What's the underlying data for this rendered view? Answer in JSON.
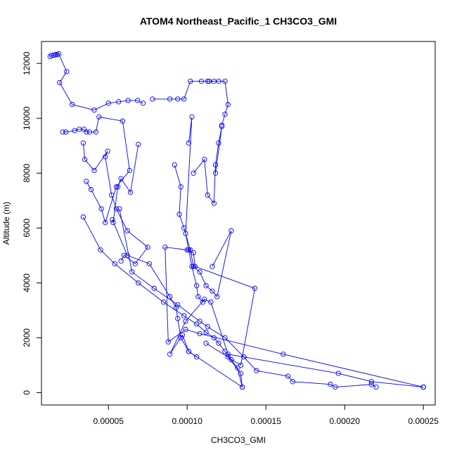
{
  "chart_data": {
    "type": "line",
    "title": "ATOM4 Northeast_Pacific_1 CH3CO3_GMI",
    "xlabel": "CH3CO3_GMI",
    "ylabel": "Altitude (m)",
    "xlim": [
      7.5e-06,
      0.0002575
    ],
    "ylim": [
      -450,
      12800
    ],
    "x_ticks": [
      {
        "value": 5e-05,
        "label": "0.00005"
      },
      {
        "value": 0.0001,
        "label": "0.00010"
      },
      {
        "value": 0.00015,
        "label": "0.00015"
      },
      {
        "value": 0.0002,
        "label": "0.00020"
      },
      {
        "value": 0.00025,
        "label": "0.00025"
      }
    ],
    "y_ticks": [
      {
        "value": 0,
        "label": "0"
      },
      {
        "value": 2000,
        "label": "2000"
      },
      {
        "value": 4000,
        "label": "4000"
      },
      {
        "value": 6000,
        "label": "6000"
      },
      {
        "value": 8000,
        "label": "8000"
      },
      {
        "value": 10000,
        "label": "10000"
      },
      {
        "value": 12000,
        "label": "12000"
      }
    ],
    "grid": false,
    "legend": "none",
    "series_color": "#0000ff",
    "marker": "open-circle",
    "series": [
      {
        "x": [
          1.3e-05,
          1.4e-05,
          1.55e-05,
          1.65e-05,
          1.75e-05,
          1.85e-05,
          2.35e-05,
          1.9e-05,
          2.7e-05,
          4.1e-05,
          5e-05,
          5.65e-05,
          6.25e-05,
          6.85e-05,
          7.2e-05
        ],
        "y": [
          12250,
          12300,
          12300,
          12320,
          12320,
          12350,
          11700,
          11300,
          10500,
          10300,
          10550,
          10600,
          10650,
          10650,
          10550
        ]
      },
      {
        "x": [
          7.8e-05,
          8.9e-05,
          9.4e-05,
          9.8e-05,
          0.000102,
          0.000109,
          0.000113,
          0.000114,
          0.000117,
          0.00012,
          0.000124,
          0.000126,
          0.000124,
          0.000122
        ],
        "y": [
          10700,
          10700,
          10700,
          10700,
          11350,
          11350,
          11350,
          11350,
          11350,
          11350,
          11350,
          10500,
          10150,
          9750
        ]
      },
      {
        "x": [
          2.1e-05,
          2.3e-05,
          2.85e-05,
          3.15e-05,
          3.45e-05,
          3.6e-05,
          3.8e-05,
          4.2e-05,
          4.4e-05,
          5.9e-05,
          6.35e-05,
          5.5e-05,
          4.8e-05,
          4.55e-05,
          3.9e-05,
          3.6e-05
        ],
        "y": [
          9500,
          9500,
          9550,
          9600,
          9600,
          9500,
          9500,
          9500,
          10050,
          9900,
          8100,
          7500,
          6200,
          6700,
          7400,
          7700
        ]
      },
      {
        "x": [
          3.4e-05,
          3.5e-05,
          4.1e-05,
          4.95e-05,
          4.8e-05,
          5.2e-05,
          5.5e-05,
          6.2e-05,
          7.5e-05,
          6.7e-05,
          6e-05,
          5.8e-05
        ],
        "y": [
          9100,
          8500,
          8100,
          8800,
          8600,
          7200,
          6700,
          5900,
          5300,
          4700,
          5000,
          4800
        ]
      },
      {
        "x": [
          6.9e-05,
          6.4e-05,
          5.8e-05,
          5.6e-05,
          5.3e-05,
          5.25e-05,
          6.2e-05,
          7.6e-05,
          8.9e-05,
          9.3e-05,
          9.4e-05,
          9.6e-05,
          0.000101,
          0.000106
        ],
        "y": [
          9050,
          7300,
          7800,
          7500,
          6200,
          6300,
          5000,
          4700,
          3500,
          3100,
          2700,
          2000,
          1500,
          1300
        ]
      },
      {
        "x": [
          9.2e-05,
          9.6e-05,
          9.5e-05,
          9.8e-05,
          0.000102,
          0.000104,
          0.000108,
          0.000112,
          0.000116,
          0.000119,
          0.000128,
          0.000116
        ],
        "y": [
          8300,
          7500,
          6500,
          6000,
          5200,
          4600,
          4400,
          3900,
          3700,
          3500,
          5900,
          4600
        ]
      },
      {
        "x": [
          0.000101,
          0.000103,
          9.9e-05,
          0.000101,
          0.000103,
          0.000106,
          0.000107,
          0.00011
        ],
        "y": [
          9100,
          10050,
          5800,
          5200,
          4600,
          3900,
          3500,
          3300
        ]
      },
      {
        "x": [
          0.000104,
          0.000111,
          0.000113,
          0.000117,
          0.000118,
          0.00012,
          0.000122,
          0.000118
        ],
        "y": [
          8000,
          8500,
          7200,
          6900,
          8300,
          9100,
          9700,
          8000
        ]
      },
      {
        "x": [
          3.4e-05,
          4.5e-05,
          5.4e-05,
          6.9e-05,
          8.5e-05,
          9.8e-05,
          0.000106,
          0.000112,
          0.000117,
          0.00012,
          0.000124,
          0.000128,
          0.000132,
          0.000135
        ],
        "y": [
          6400,
          5200,
          4700,
          4000,
          3300,
          2800,
          2500,
          2200,
          2000,
          1800,
          1500,
          1200,
          900,
          200
        ]
      },
      {
        "x": [
          5.7e-05,
          6.5e-05,
          7.9e-05,
          9.4e-05,
          0.000108,
          0.000113,
          0.000124,
          0.000136,
          0.000144,
          0.000164,
          0.000167,
          0.000191,
          0.000194,
          0.000217,
          0.00022
        ],
        "y": [
          6700,
          4400,
          3800,
          3200,
          2600,
          2400,
          2000,
          1300,
          800,
          600,
          400,
          300,
          200,
          300,
          200
        ]
      },
      {
        "x": [
          0.000112,
          0.000134,
          0.000143,
          0.000105,
          0.000104,
          0.0001,
          8.6e-05,
          8.8e-05,
          9.9e-05,
          0.000108,
          0.000161,
          0.00025,
          0.00025
        ],
        "y": [
          1800,
          1000,
          3800,
          4600,
          5100,
          5200,
          5300,
          1850,
          2300,
          2150,
          1400,
          200,
          200
        ]
      },
      {
        "x": [
          0.000126,
          0.000134,
          0.000135,
          0.000101,
          9.7e-05,
          8.9e-05,
          9.9e-05,
          0.000111,
          0.000115,
          0.000126,
          0.000196,
          0.000217,
          0.00025
        ],
        "y": [
          1300,
          700,
          200,
          1500,
          2100,
          1400,
          2600,
          3400,
          3300,
          1400,
          700,
          400,
          200
        ]
      }
    ]
  }
}
